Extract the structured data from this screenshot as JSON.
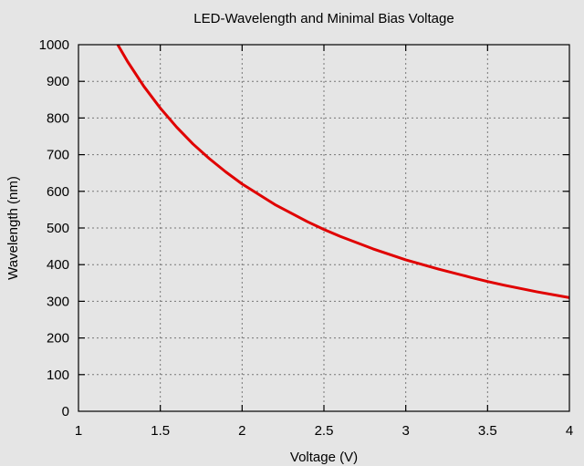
{
  "chart_data": {
    "type": "line",
    "title": "LED-Wavelength and Minimal Bias Voltage",
    "xlabel": "Voltage (V)",
    "ylabel": "Wavelength (nm)",
    "xlim": [
      1,
      4
    ],
    "ylim": [
      0,
      1000
    ],
    "xticks": [
      1,
      1.5,
      2,
      2.5,
      3,
      3.5,
      4
    ],
    "xtick_labels": [
      "1",
      "1.5",
      "2",
      "2.5",
      "3",
      "3.5",
      "4"
    ],
    "yticks": [
      0,
      100,
      200,
      300,
      400,
      500,
      600,
      700,
      800,
      900,
      1000
    ],
    "ytick_labels": [
      "0",
      "100",
      "200",
      "300",
      "400",
      "500",
      "600",
      "700",
      "800",
      "900",
      "1000"
    ],
    "grid": true,
    "series": [
      {
        "color": "#e00000",
        "x": [
          1.24,
          1.3,
          1.4,
          1.5,
          1.6,
          1.7,
          1.8,
          1.9,
          2.0,
          2.2,
          2.4,
          2.5,
          2.6,
          2.8,
          3.0,
          3.2,
          3.4,
          3.5,
          3.6,
          3.8,
          4.0
        ],
        "y": [
          1000,
          954,
          886,
          827,
          775,
          729,
          689,
          653,
          620,
          564,
          517,
          496,
          477,
          443,
          413,
          388,
          365,
          354,
          344,
          326,
          310
        ]
      }
    ]
  }
}
